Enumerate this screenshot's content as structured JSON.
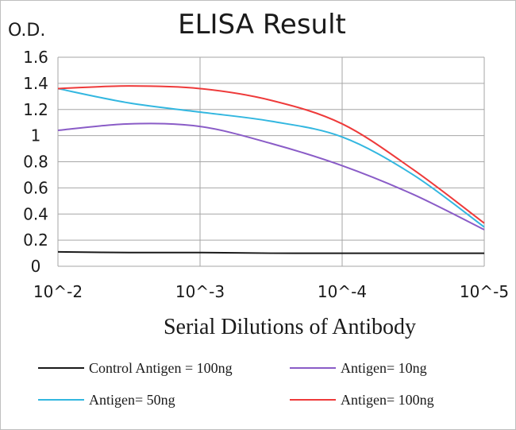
{
  "chart_data": {
    "type": "line",
    "title": "ELISA Result",
    "ylabel": "O.D.",
    "xlabel": "Serial Dilutions of Antibody",
    "x_categories": [
      "10^-2",
      "10^-3",
      "10^-4",
      "10^-5"
    ],
    "x": [
      0,
      0.5,
      1,
      1.5,
      2,
      2.5,
      3
    ],
    "ylim": [
      0,
      1.6
    ],
    "y_ticks": [
      "0",
      "0.2",
      "0.4",
      "0.6",
      "0.8",
      "1",
      "1.2",
      "1.4",
      "1.6"
    ],
    "grid": true,
    "legend_position": "bottom",
    "series": [
      {
        "name": "Control Antigen = 100ng",
        "color": "#1a1a1a",
        "values": [
          0.11,
          0.105,
          0.105,
          0.1,
          0.1,
          0.1,
          0.1
        ]
      },
      {
        "name": "Antigen= 10ng",
        "color": "#8a5cc7",
        "values": [
          1.04,
          1.09,
          1.07,
          0.94,
          0.77,
          0.55,
          0.28
        ]
      },
      {
        "name": "Antigen= 50ng",
        "color": "#33b7e0",
        "values": [
          1.36,
          1.25,
          1.18,
          1.11,
          0.99,
          0.7,
          0.3
        ]
      },
      {
        "name": "Antigen= 100ng",
        "color": "#ee3a3a",
        "values": [
          1.36,
          1.38,
          1.36,
          1.27,
          1.09,
          0.74,
          0.33
        ]
      }
    ]
  }
}
